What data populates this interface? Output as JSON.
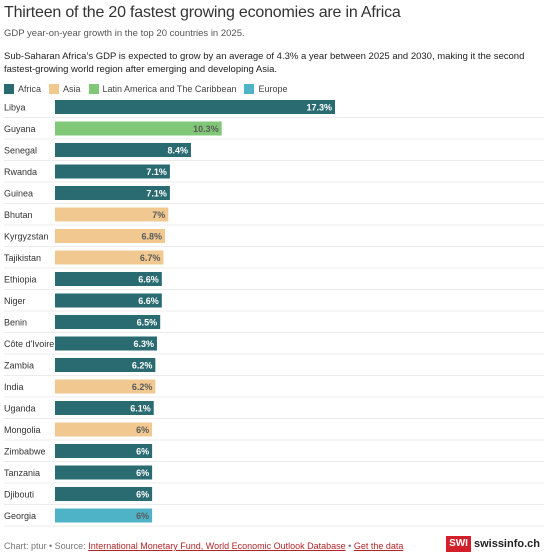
{
  "header": {
    "title": "Thirteen of the 20 fastest growing economies are in Africa",
    "subtitle": "GDP year-on-year growth in the top 20 countries in 2025.",
    "description": "Sub-Saharan Africa’s GDP is expected to grow by an average of 4.3% a year between 2025 and 2030, making it the second fastest-growing world region after emerging and developing Asia."
  },
  "legend": [
    {
      "label": "Africa",
      "color": "#2a6b72"
    },
    {
      "label": "Asia",
      "color": "#f0c890"
    },
    {
      "label": "Latin America and The Caribbean",
      "color": "#80c878"
    },
    {
      "label": "Europe",
      "color": "#4fb3c8"
    }
  ],
  "chart_data": {
    "type": "bar",
    "orientation": "horizontal",
    "categories": [
      "Libya",
      "Guyana",
      "Senegal",
      "Rwanda",
      "Guinea",
      "Bhutan",
      "Kyrgyzstan",
      "Tajikistan",
      "Ethiopia",
      "Niger",
      "Benin",
      "Côte d'Ivoire",
      "Zambia",
      "India",
      "Uganda",
      "Mongolia",
      "Zimbabwe",
      "Tanzania",
      "Djibouti",
      "Georgia"
    ],
    "values": [
      17.3,
      10.3,
      8.4,
      7.1,
      7.1,
      7,
      6.8,
      6.7,
      6.6,
      6.6,
      6.5,
      6.3,
      6.2,
      6.2,
      6.1,
      6,
      6,
      6,
      6,
      6
    ],
    "value_labels": [
      "17.3%",
      "10.3%",
      "8.4%",
      "7.1%",
      "7.1%",
      "7%",
      "6.8%",
      "6.7%",
      "6.6%",
      "6.6%",
      "6.5%",
      "6.3%",
      "6.2%",
      "6.2%",
      "6.1%",
      "6%",
      "6%",
      "6%",
      "6%",
      "6%"
    ],
    "regions": [
      "Africa",
      "Latin America and The Caribbean",
      "Africa",
      "Africa",
      "Africa",
      "Asia",
      "Asia",
      "Asia",
      "Africa",
      "Africa",
      "Africa",
      "Africa",
      "Africa",
      "Asia",
      "Africa",
      "Asia",
      "Africa",
      "Africa",
      "Africa",
      "Europe"
    ],
    "xlim": [
      0,
      17.3
    ],
    "grid": false,
    "legend_position": "top-left"
  },
  "footer": {
    "prefix": "Chart: ptur • Source: ",
    "source_link": "International Monetary Fund, World Economic Outlook Database",
    "separator": " • ",
    "data_link": "Get the data"
  },
  "logo": {
    "badge": "SWI",
    "text": "swissinfo.ch"
  }
}
